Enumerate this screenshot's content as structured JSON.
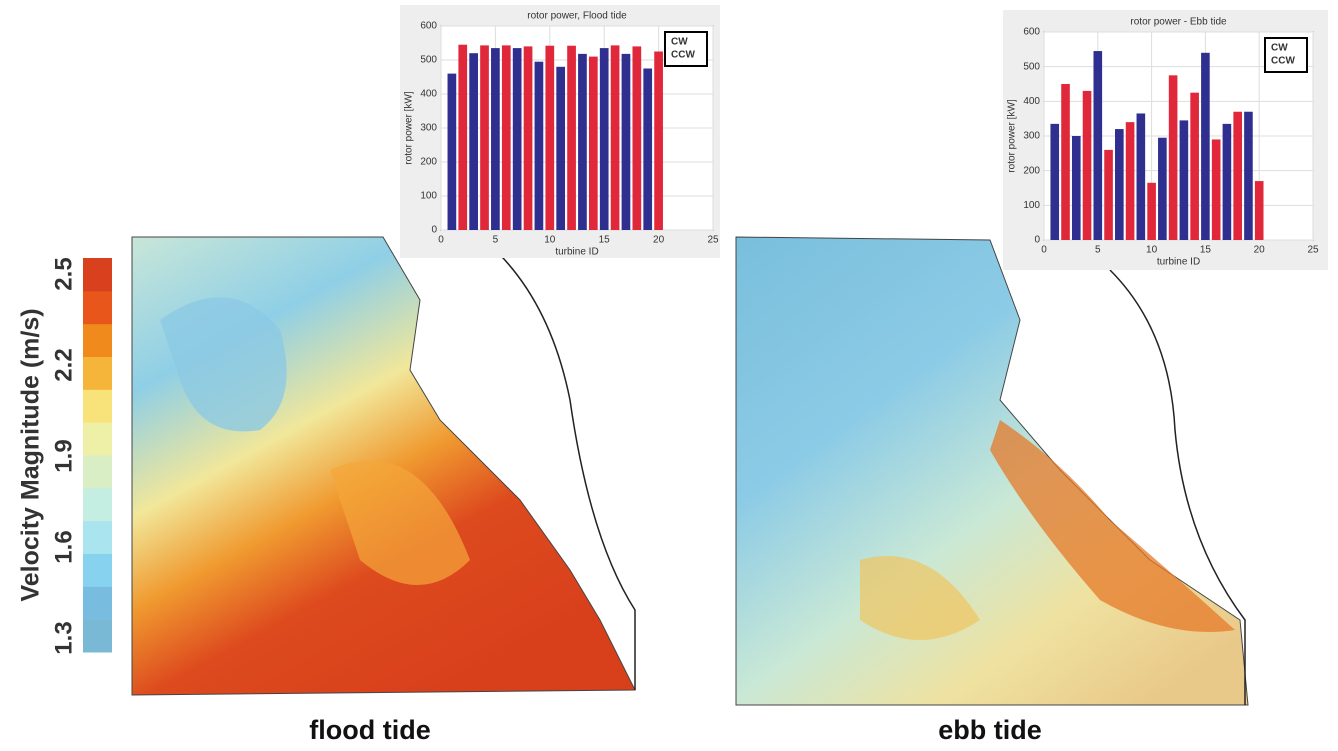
{
  "chart_data": [
    {
      "type": "bar",
      "title": "rotor power, Flood tide",
      "xlabel": "turbine ID",
      "ylabel": "rotor power [kW]",
      "xlim": [
        0,
        25
      ],
      "xticks": [
        0,
        5,
        10,
        15,
        20,
        25
      ],
      "ylim": [
        0,
        600
      ],
      "yticks": [
        0,
        100,
        200,
        300,
        400,
        500,
        600
      ],
      "grid": true,
      "legend": "upper right",
      "series": [
        {
          "name": "CW",
          "color": "#2e2f8f",
          "x": [
            1,
            3,
            5,
            7,
            9,
            11,
            13,
            15,
            17,
            19
          ],
          "values": [
            460,
            520,
            535,
            535,
            495,
            480,
            518,
            535,
            518,
            475
          ]
        },
        {
          "name": "CCW",
          "color": "#e0283a",
          "x": [
            2,
            4,
            6,
            8,
            10,
            12,
            14,
            16,
            18,
            20
          ],
          "values": [
            545,
            543,
            543,
            540,
            542,
            542,
            510,
            543,
            540,
            525
          ]
        }
      ]
    },
    {
      "type": "bar",
      "title": "rotor power - Ebb tide",
      "xlabel": "turbine ID",
      "ylabel": "rotor power [kW]",
      "xlim": [
        0,
        25
      ],
      "xticks": [
        0,
        5,
        10,
        15,
        20,
        25
      ],
      "ylim": [
        0,
        600
      ],
      "yticks": [
        0,
        100,
        200,
        300,
        400,
        500,
        600
      ],
      "grid": true,
      "legend": "upper right",
      "series": [
        {
          "name": "CW",
          "color": "#2e2f8f",
          "x": [
            1,
            3,
            5,
            7,
            9,
            11,
            13,
            15,
            17,
            19
          ],
          "values": [
            335,
            300,
            545,
            320,
            365,
            295,
            345,
            540,
            335,
            370
          ]
        },
        {
          "name": "CCW",
          "color": "#e0283a",
          "x": [
            2,
            4,
            6,
            8,
            10,
            12,
            14,
            16,
            18,
            20
          ],
          "values": [
            450,
            430,
            260,
            340,
            165,
            475,
            425,
            290,
            370,
            170
          ]
        }
      ]
    },
    {
      "type": "colorbar",
      "label": "Velocity Magnitude (m/s)",
      "ylim": [
        1.3,
        2.5
      ],
      "yticks": [
        1.3,
        1.6,
        1.9,
        2.2,
        2.5
      ],
      "colors": [
        "#7ab9d6",
        "#78bde0",
        "#86d2ef",
        "#a9e4ef",
        "#c4eee2",
        "#d9eec4",
        "#eef0a8",
        "#f7e37a",
        "#f5b53a",
        "#f08a1c",
        "#e8561c",
        "#d9411e"
      ]
    }
  ],
  "captions": {
    "flood": "flood tide",
    "ebb": "ebb tide"
  }
}
